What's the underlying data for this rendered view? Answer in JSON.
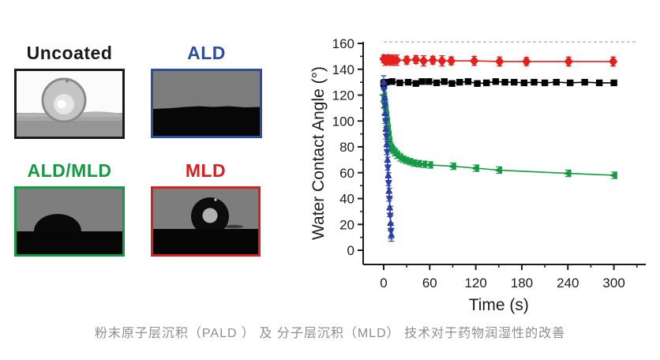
{
  "figure": {
    "caption": "粉末原子层沉积（PALD ） 及 分子层沉积（MLD） 技术对于药物润湿性的改善",
    "panels": [
      {
        "id": "uncoated",
        "label": "Uncoated",
        "color": "#1a1a1a"
      },
      {
        "id": "ald",
        "label": "ALD",
        "color": "#2a4fa2"
      },
      {
        "id": "ald-mld",
        "label": "ALD/MLD",
        "color": "#159a44"
      },
      {
        "id": "mld",
        "label": "MLD",
        "color": "#d8201f"
      }
    ]
  },
  "chart_data": {
    "type": "scatter",
    "title": "",
    "xlabel": "Time (s)",
    "ylabel": "Water Contact Angle (°)",
    "xlim": [
      -27,
      343
    ],
    "ylim": [
      -10.5,
      162
    ],
    "x_ticks_major": [
      0,
      60,
      120,
      180,
      240,
      300
    ],
    "x_ticks_minor": [
      30,
      90,
      150,
      210,
      270,
      330
    ],
    "y_ticks_major": [
      0,
      20,
      40,
      60,
      80,
      100,
      120,
      140,
      160
    ],
    "y_ticks_minor": [
      10,
      30,
      50,
      70,
      90,
      110,
      130,
      150
    ],
    "grid": false,
    "legend": "none",
    "series": [
      {
        "name": "Uncoated",
        "color": "#000000",
        "marker": "square",
        "marker_size": 4.2,
        "points": [
          [
            0,
            129,
            3
          ],
          [
            3,
            130,
            2
          ],
          [
            11,
            130.5,
            2
          ],
          [
            21,
            129.5,
            2
          ],
          [
            32,
            130,
            2
          ],
          [
            42,
            129,
            2
          ],
          [
            50,
            130.5,
            2
          ],
          [
            59,
            130.5,
            2
          ],
          [
            69,
            129.5,
            2
          ],
          [
            79,
            130.5,
            2
          ],
          [
            89,
            129,
            2
          ],
          [
            99,
            130,
            2
          ],
          [
            110,
            130.5,
            2
          ],
          [
            122,
            129,
            2
          ],
          [
            134,
            129.5,
            2
          ],
          [
            146,
            130.5,
            2
          ],
          [
            158,
            130,
            2
          ],
          [
            170,
            130,
            2
          ],
          [
            183,
            129.5,
            2
          ],
          [
            196,
            130,
            2
          ],
          [
            210,
            129.5,
            2
          ],
          [
            225,
            130,
            2
          ],
          [
            243,
            129.5,
            2
          ],
          [
            262,
            130,
            2
          ],
          [
            281,
            129.5,
            2
          ],
          [
            300,
            129.5,
            2
          ]
        ]
      },
      {
        "name": "ALD-MLD",
        "color": "#159a44",
        "marker": "tri-left",
        "marker_size": 5,
        "points": [
          [
            0,
            120,
            4
          ],
          [
            1,
            115,
            4
          ],
          [
            2,
            110,
            4
          ],
          [
            3,
            105,
            4
          ],
          [
            4,
            100,
            4
          ],
          [
            5,
            95,
            4
          ],
          [
            6,
            90,
            4
          ],
          [
            7,
            85,
            4
          ],
          [
            9,
            80,
            3.5
          ],
          [
            11,
            78,
            3
          ],
          [
            14,
            76,
            3
          ],
          [
            17,
            74,
            3
          ],
          [
            21,
            72,
            3
          ],
          [
            25,
            70.5,
            2.5
          ],
          [
            29,
            69.5,
            2.5
          ],
          [
            34,
            68.5,
            2.5
          ],
          [
            39,
            67.5,
            2.5
          ],
          [
            45,
            67,
            2.5
          ],
          [
            52,
            66.5,
            2.5
          ],
          [
            60,
            66,
            2.5
          ],
          [
            90,
            65,
            2.5
          ],
          [
            120,
            63.5,
            2.5
          ],
          [
            150,
            62,
            2.5
          ],
          [
            240,
            59.5,
            2.5
          ],
          [
            300,
            58,
            2.5
          ]
        ]
      },
      {
        "name": "ALD",
        "color": "#2b3fa8",
        "marker": "tri-alt",
        "marker_size": 4.5,
        "points": [
          [
            0,
            130,
            5
          ],
          [
            0.5,
            124,
            6
          ],
          [
            1,
            118,
            7
          ],
          [
            1.5,
            112,
            7
          ],
          [
            2,
            106,
            8
          ],
          [
            2.5,
            100,
            8
          ],
          [
            3,
            94,
            8
          ],
          [
            3.5,
            88,
            8
          ],
          [
            4,
            82,
            8
          ],
          [
            4.5,
            76,
            8
          ],
          [
            5,
            70,
            8
          ],
          [
            5.5,
            64,
            8
          ],
          [
            6,
            58,
            8
          ],
          [
            6.5,
            52,
            8
          ],
          [
            7,
            46,
            8
          ],
          [
            7.5,
            40,
            8
          ],
          [
            8,
            33,
            7
          ],
          [
            8.5,
            27,
            7
          ],
          [
            9,
            21,
            6
          ],
          [
            9.5,
            15,
            6
          ],
          [
            10,
            12,
            5
          ]
        ]
      },
      {
        "name": "MLD",
        "color": "#e51f1c",
        "marker": "diamond",
        "marker_size": 5.5,
        "points": [
          [
            0,
            148,
            3
          ],
          [
            2,
            147,
            4
          ],
          [
            4,
            147,
            3
          ],
          [
            6,
            148,
            3
          ],
          [
            8,
            146.5,
            3
          ],
          [
            10,
            147.5,
            3
          ],
          [
            13,
            147,
            4
          ],
          [
            17,
            147,
            4
          ],
          [
            30,
            147,
            3
          ],
          [
            42,
            147.5,
            3
          ],
          [
            52,
            146.5,
            4
          ],
          [
            64,
            147,
            3
          ],
          [
            76,
            146.5,
            4
          ],
          [
            88,
            146.5,
            3
          ],
          [
            118,
            146.5,
            3.5
          ],
          [
            151,
            146,
            3.5
          ],
          [
            186,
            146,
            3
          ],
          [
            241,
            146,
            3.5
          ],
          [
            299,
            146,
            3.5
          ]
        ]
      }
    ]
  }
}
